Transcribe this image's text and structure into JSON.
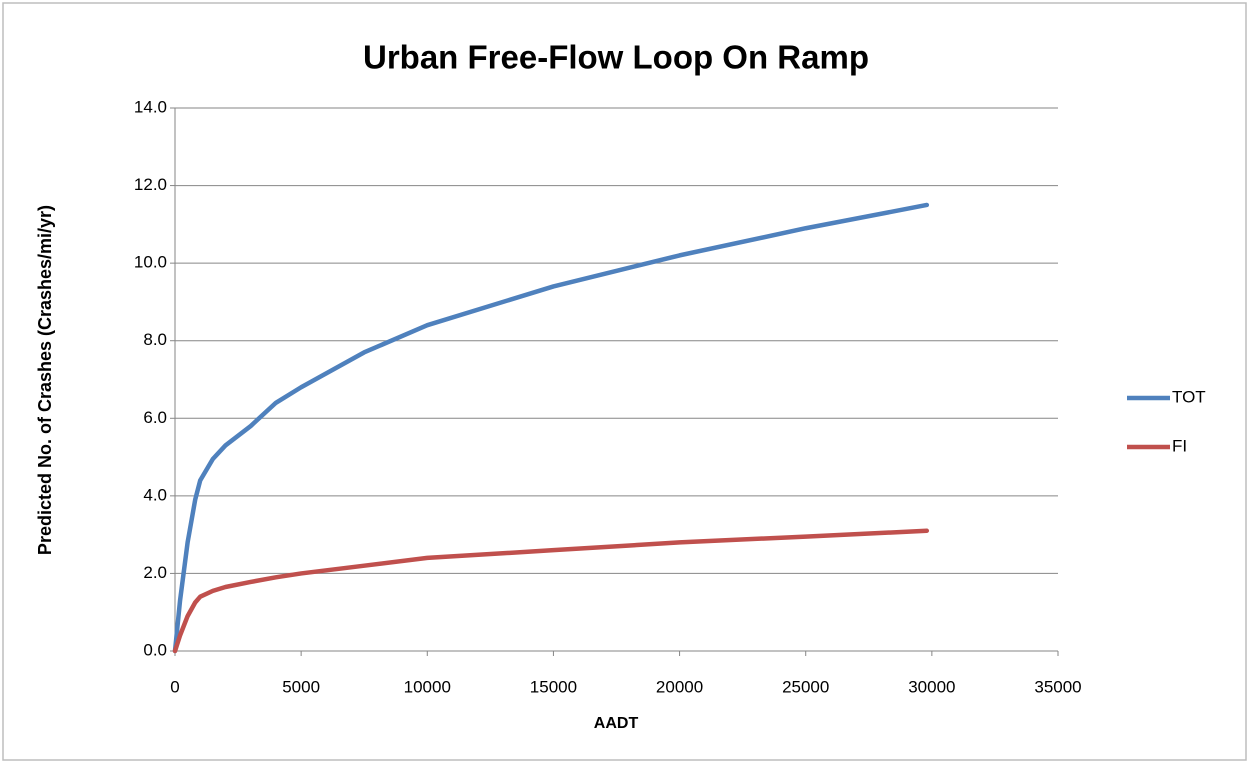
{
  "chart_data": {
    "type": "line",
    "title": "Urban Free-Flow Loop On Ramp",
    "x_label": "AADT",
    "y_label": "Predicted No. of Crashes (Crashes/mi/yr)",
    "x": [
      0,
      200,
      500,
      800,
      1000,
      1500,
      2000,
      3000,
      4000,
      5000,
      7500,
      10000,
      15000,
      20000,
      25000,
      29800
    ],
    "series": [
      {
        "name": "TOT",
        "color": "#4f81bd",
        "values": [
          0,
          1.3,
          2.8,
          3.9,
          4.4,
          4.95,
          5.3,
          5.8,
          6.4,
          6.8,
          7.7,
          8.4,
          9.4,
          10.2,
          10.9,
          11.5
        ]
      },
      {
        "name": "FI",
        "color": "#c0504d",
        "values": [
          0,
          0.4,
          0.9,
          1.25,
          1.4,
          1.55,
          1.65,
          1.78,
          1.9,
          2.0,
          2.2,
          2.4,
          2.6,
          2.8,
          2.95,
          3.1
        ]
      }
    ],
    "xlim": [
      0,
      35000
    ],
    "xticks": [
      0,
      5000,
      10000,
      15000,
      20000,
      25000,
      30000,
      35000
    ],
    "ylim": [
      0,
      14
    ],
    "yticks": [
      {
        "value": 0,
        "label": "0.0"
      },
      {
        "value": 2,
        "label": "2.0"
      },
      {
        "value": 4,
        "label": "4.0"
      },
      {
        "value": 6,
        "label": "6.0"
      },
      {
        "value": 8,
        "label": "8.0"
      },
      {
        "value": 10,
        "label": "10.0"
      },
      {
        "value": 12,
        "label": "12.0"
      },
      {
        "value": 14,
        "label": "14.0"
      }
    ],
    "grid": true,
    "legend": "right"
  }
}
